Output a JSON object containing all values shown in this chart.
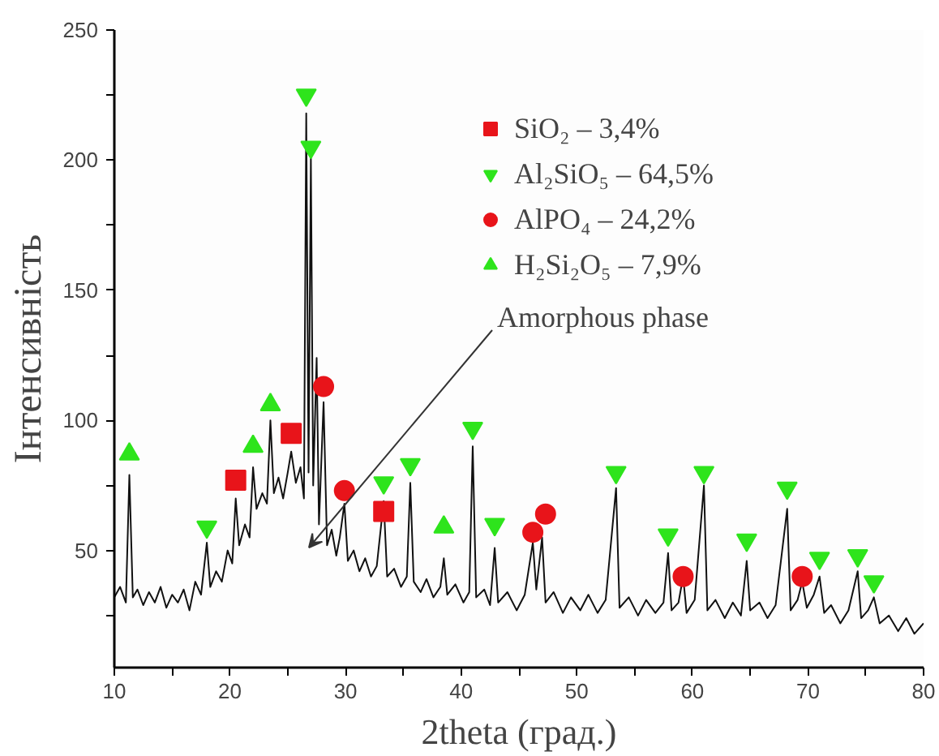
{
  "chart_data": {
    "type": "line",
    "xlabel": "2theta (град.)",
    "ylabel": "Інтенсивність",
    "xlim": [
      10,
      80
    ],
    "ylim": [
      5,
      250
    ],
    "xticks": [
      10,
      {
        "value": 15,
        "label": null
      },
      20,
      {
        "value": 25,
        "label": null
      },
      30,
      {
        "value": 35,
        "label": null
      },
      40,
      {
        "value": 45,
        "label": null
      },
      50,
      {
        "value": 55,
        "label": null
      },
      60,
      {
        "value": 65,
        "label": null
      },
      70,
      {
        "value": 75,
        "label": null
      },
      80
    ],
    "yticks": [
      {
        "value": 25,
        "label": null
      },
      50,
      {
        "value": 75,
        "label": null
      },
      100,
      {
        "value": 125,
        "label": null
      },
      150,
      {
        "value": 175,
        "label": null
      },
      200,
      {
        "value": 225,
        "label": null
      },
      250
    ],
    "grid": false,
    "legend": "top right",
    "annotations": [
      "Amorphous phase"
    ],
    "series": [
      {
        "type": "line",
        "color": "#111111",
        "marker": "none",
        "line_style": "solid",
        "x": [
          10,
          10.5,
          11,
          11.3,
          11.6,
          12,
          12.5,
          13,
          13.5,
          14,
          14.5,
          15,
          15.5,
          16,
          16.5,
          17,
          17.5,
          18,
          18.3,
          18.8,
          19.3,
          19.8,
          20.2,
          20.5,
          20.8,
          21.3,
          21.7,
          22,
          22.3,
          22.8,
          23.2,
          23.5,
          23.8,
          24.2,
          24.6,
          25,
          25.3,
          25.7,
          26.1,
          26.4,
          26.6,
          26.8,
          27,
          27.2,
          27.5,
          27.7,
          28.1,
          28.4,
          28.8,
          29.2,
          29.5,
          29.9,
          30.2,
          30.7,
          31.2,
          31.7,
          32.2,
          32.7,
          33.3,
          33.6,
          34.2,
          34.8,
          35.3,
          35.6,
          35.9,
          36.5,
          37,
          37.6,
          38.2,
          38.5,
          38.8,
          39.5,
          40.2,
          40.7,
          41,
          41.3,
          42,
          42.5,
          42.9,
          43.2,
          44,
          44.8,
          45.5,
          46.2,
          46.5,
          47,
          47.3,
          48,
          48.8,
          49.5,
          50.3,
          51,
          51.8,
          52.5,
          53.4,
          53.7,
          54.5,
          55.3,
          56,
          56.8,
          57.5,
          57.9,
          58.2,
          58.8,
          59.2,
          59.5,
          60.2,
          61,
          61.3,
          62,
          62.8,
          63.5,
          64.2,
          64.7,
          65,
          65.8,
          66.5,
          67.2,
          68.2,
          68.5,
          69.1,
          69.5,
          69.9,
          70.5,
          71,
          71.4,
          72,
          72.8,
          73.5,
          74.3,
          74.6,
          75.2,
          75.7,
          76.2,
          77,
          77.8,
          78.5,
          79.2,
          80
        ],
        "values": [
          32,
          36,
          30,
          79,
          32,
          35,
          29,
          34,
          30,
          36,
          28,
          33,
          30,
          35,
          27,
          38,
          33,
          53,
          36,
          42,
          38,
          50,
          45,
          70,
          52,
          60,
          55,
          82,
          66,
          72,
          68,
          100,
          72,
          78,
          70,
          80,
          88,
          76,
          82,
          70,
          218,
          80,
          201,
          75,
          124,
          60,
          107,
          52,
          58,
          48,
          55,
          68,
          46,
          50,
          42,
          47,
          40,
          44,
          69,
          40,
          43,
          36,
          40,
          76,
          38,
          34,
          39,
          32,
          36,
          47,
          33,
          37,
          30,
          34,
          90,
          32,
          35,
          29,
          51,
          30,
          34,
          27,
          33,
          53,
          35,
          55,
          30,
          34,
          26,
          32,
          27,
          33,
          26,
          31,
          74,
          28,
          32,
          25,
          31,
          26,
          30,
          49,
          27,
          30,
          40,
          26,
          31,
          75,
          27,
          31,
          24,
          30,
          25,
          46,
          27,
          30,
          24,
          29,
          66,
          27,
          31,
          38,
          28,
          33,
          40,
          26,
          29,
          22,
          27,
          42,
          24,
          27,
          32,
          22,
          25,
          19,
          24,
          18,
          22
        ]
      },
      {
        "type": "scatter",
        "name": "SiO₂ – 3,4%",
        "color": "#e8141a",
        "marker": "square",
        "x": [
          20.5,
          25.3,
          33.3
        ],
        "values": [
          77,
          95,
          65
        ]
      },
      {
        "type": "scatter",
        "name": "Al₂SiO₅ – 64,5%",
        "color": "#2ee41c",
        "x": [
          18,
          26.6,
          27,
          33.3,
          35.6,
          41,
          42.9,
          53.4,
          57.9,
          61,
          64.7,
          68.2,
          71,
          74.3,
          75.7
        ],
        "values": [
          59,
          225,
          205,
          76,
          83,
          97,
          60,
          80,
          56,
          80,
          54,
          74,
          47,
          48,
          38
        ]
      },
      {
        "type": "scatter",
        "name": "AlPO₄ – 24,2%",
        "color": "#e8141a",
        "marker": "circle",
        "x": [
          28.1,
          29.9,
          46.2,
          47.3,
          59.2,
          69.5
        ],
        "values": [
          113,
          73,
          57,
          64,
          40,
          40
        ]
      },
      {
        "type": "scatter",
        "name": "H₂Si₂O₅ – 7,9%",
        "color": "#2ee41c",
        "marker": "triangle",
        "x": [
          11.3,
          22,
          23.5,
          38.5
        ],
        "values": [
          87,
          90,
          106,
          59
        ]
      }
    ]
  }
}
